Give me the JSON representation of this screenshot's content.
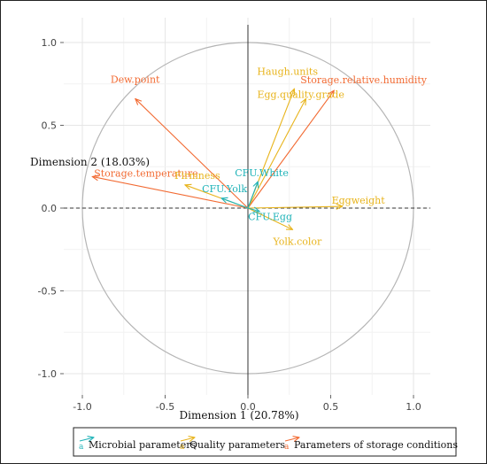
{
  "chart_data": {
    "type": "scatter",
    "subtype": "pca-correlation-circle",
    "xlabel": "Dimension 1 (20.78%)",
    "ylabel": "Dimension 2 (18.03%)",
    "xlim": [
      -1.0,
      1.0
    ],
    "ylim": [
      -1.0,
      1.0
    ],
    "x_ticks": [
      "-1.0",
      "-0.5",
      "0.0",
      "0.5",
      "1.0"
    ],
    "y_ticks": [
      "1.0",
      "0.5",
      "0.0",
      "-0.5",
      "-1.0"
    ],
    "grid": true,
    "legend_position": "bottom",
    "groups": [
      {
        "name": "Microbial parameters",
        "color": "#1fb3b8",
        "key": "a"
      },
      {
        "name": "Quality parameters",
        "color": "#e8b41c",
        "key": "a"
      },
      {
        "name": "Parameters of storage conditions",
        "color": "#f26a32",
        "key": "a"
      }
    ],
    "variables": [
      {
        "name": "Dew.point",
        "group": 2,
        "x": -0.68,
        "y": 0.66
      },
      {
        "name": "Storage.temperature",
        "group": 2,
        "x": -0.94,
        "y": 0.19
      },
      {
        "name": "Storage.relative.humidity",
        "group": 2,
        "x": 0.52,
        "y": 0.71
      },
      {
        "name": "Haugh.units",
        "group": 1,
        "x": 0.28,
        "y": 0.72
      },
      {
        "name": "Egg.quality.grade",
        "group": 1,
        "x": 0.35,
        "y": 0.66
      },
      {
        "name": "Firmness",
        "group": 1,
        "x": -0.38,
        "y": 0.14
      },
      {
        "name": "Eggweight",
        "group": 1,
        "x": 0.57,
        "y": 0.01
      },
      {
        "name": "Yolk.color",
        "group": 1,
        "x": 0.27,
        "y": -0.13
      },
      {
        "name": "CFU.White",
        "group": 0,
        "x": 0.06,
        "y": 0.16
      },
      {
        "name": "CFU.Yolk",
        "group": 0,
        "x": -0.16,
        "y": 0.06
      },
      {
        "name": "CFU.Egg",
        "group": 0,
        "x": 0.07,
        "y": -0.02
      }
    ]
  }
}
